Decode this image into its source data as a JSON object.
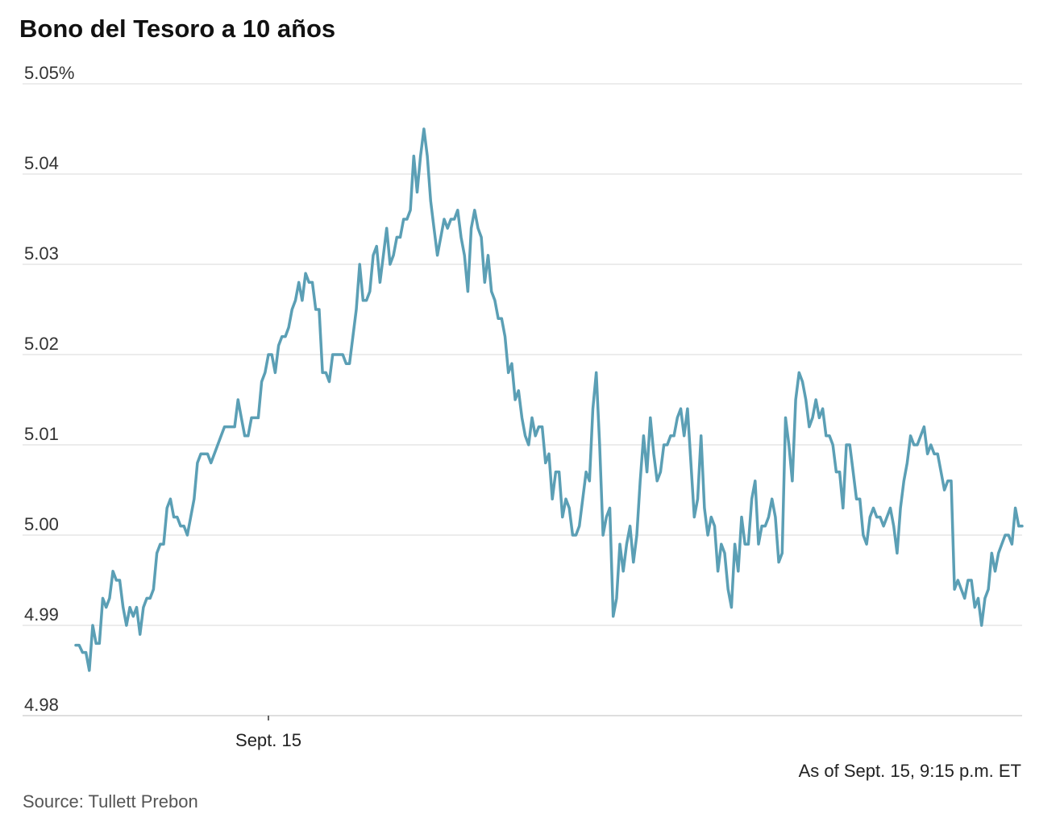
{
  "chart_data": {
    "type": "line",
    "title": "Bono del Tesoro a 10 años",
    "y_tick_labels": [
      "5.05%",
      "5.04",
      "5.03",
      "5.02",
      "5.01",
      "5.00",
      "4.99",
      "4.98"
    ],
    "y_ticks": [
      5.05,
      5.04,
      5.03,
      5.02,
      5.01,
      5.0,
      4.99,
      4.98
    ],
    "ylim": [
      4.98,
      5.05
    ],
    "x_tick_labels": [
      "Sept. 15"
    ],
    "x_tick_index": [
      57
    ],
    "grid": "horizontal",
    "line_color": "#5b9fb5",
    "grid_color": "#d9d9d9",
    "values": [
      4.9878,
      4.9878,
      4.987,
      4.987,
      4.985,
      4.99,
      4.988,
      4.988,
      4.993,
      4.992,
      4.993,
      4.996,
      4.995,
      4.995,
      4.992,
      4.99,
      4.992,
      4.991,
      4.992,
      4.989,
      4.992,
      4.993,
      4.993,
      4.994,
      4.998,
      4.999,
      4.999,
      5.003,
      5.004,
      5.002,
      5.002,
      5.001,
      5.001,
      5.0,
      5.002,
      5.004,
      5.008,
      5.009,
      5.009,
      5.009,
      5.008,
      5.009,
      5.01,
      5.011,
      5.012,
      5.012,
      5.012,
      5.012,
      5.015,
      5.013,
      5.011,
      5.011,
      5.013,
      5.013,
      5.013,
      5.017,
      5.018,
      5.02,
      5.02,
      5.018,
      5.021,
      5.022,
      5.022,
      5.023,
      5.025,
      5.026,
      5.028,
      5.026,
      5.029,
      5.028,
      5.028,
      5.025,
      5.025,
      5.018,
      5.018,
      5.017,
      5.02,
      5.02,
      5.02,
      5.02,
      5.019,
      5.019,
      5.022,
      5.025,
      5.03,
      5.026,
      5.026,
      5.027,
      5.031,
      5.032,
      5.028,
      5.031,
      5.034,
      5.03,
      5.031,
      5.033,
      5.033,
      5.035,
      5.035,
      5.036,
      5.042,
      5.038,
      5.042,
      5.045,
      5.042,
      5.037,
      5.034,
      5.031,
      5.033,
      5.035,
      5.034,
      5.035,
      5.035,
      5.036,
      5.033,
      5.031,
      5.027,
      5.034,
      5.036,
      5.034,
      5.033,
      5.028,
      5.031,
      5.027,
      5.026,
      5.024,
      5.024,
      5.022,
      5.018,
      5.019,
      5.015,
      5.016,
      5.013,
      5.011,
      5.01,
      5.013,
      5.011,
      5.012,
      5.012,
      5.008,
      5.009,
      5.004,
      5.007,
      5.007,
      5.002,
      5.004,
      5.003,
      5.0,
      5.0,
      5.001,
      5.004,
      5.007,
      5.006,
      5.014,
      5.018,
      5.01,
      5.0,
      5.002,
      5.003,
      4.991,
      4.993,
      4.999,
      4.996,
      4.999,
      5.001,
      4.997,
      5.0,
      5.006,
      5.011,
      5.007,
      5.013,
      5.009,
      5.006,
      5.007,
      5.01,
      5.01,
      5.011,
      5.011,
      5.013,
      5.014,
      5.011,
      5.014,
      5.008,
      5.002,
      5.004,
      5.011,
      5.003,
      5.0,
      5.002,
      5.001,
      4.996,
      4.999,
      4.998,
      4.994,
      4.992,
      4.999,
      4.996,
      5.002,
      4.999,
      4.999,
      5.004,
      5.006,
      4.999,
      5.001,
      5.001,
      5.002,
      5.004,
      5.002,
      4.997,
      4.998,
      5.013,
      5.01,
      5.006,
      5.015,
      5.018,
      5.017,
      5.015,
      5.012,
      5.013,
      5.015,
      5.013,
      5.014,
      5.011,
      5.011,
      5.01,
      5.007,
      5.007,
      5.003,
      5.01,
      5.01,
      5.007,
      5.004,
      5.004,
      5.0,
      4.999,
      5.002,
      5.003,
      5.002,
      5.002,
      5.001,
      5.002,
      5.003,
      5.001,
      4.998,
      5.003,
      5.006,
      5.008,
      5.011,
      5.01,
      5.01,
      5.011,
      5.012,
      5.009,
      5.01,
      5.009,
      5.009,
      5.007,
      5.005,
      5.006,
      5.006,
      4.994,
      4.995,
      4.994,
      4.993,
      4.995,
      4.995,
      4.992,
      4.993,
      4.99,
      4.993,
      4.994,
      4.998,
      4.996,
      4.998,
      4.999,
      5.0,
      5.0,
      4.999,
      5.003,
      5.001,
      5.001
    ]
  },
  "note": "As of Sept. 15, 9:15 p.m. ET",
  "source": "Source: Tullett Prebon"
}
